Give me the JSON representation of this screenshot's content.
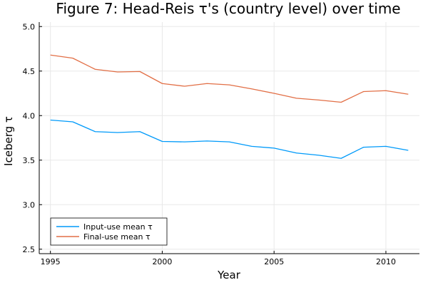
{
  "chart_data": {
    "type": "line",
    "title": "Figure 7: Head-Reis τ's (country level) over time",
    "xlabel": "Year",
    "ylabel": "Iceberg τ",
    "xlim": [
      1994.5,
      2011.5
    ],
    "ylim": [
      2.45,
      5.05
    ],
    "xticks": [
      1995,
      2000,
      2005,
      2010
    ],
    "yticks": [
      "2.5",
      "3.0",
      "3.5",
      "4.0",
      "4.5",
      "5.0"
    ],
    "grid": true,
    "legend_position": "bottom-left",
    "x": [
      1995,
      1996,
      1997,
      1998,
      1999,
      2000,
      2001,
      2002,
      2003,
      2004,
      2005,
      2006,
      2007,
      2008,
      2009,
      2010,
      2011
    ],
    "series": [
      {
        "name": "Input-use mean τ",
        "color": "#009AFA",
        "values": [
          3.95,
          3.93,
          3.82,
          3.81,
          3.82,
          3.71,
          3.705,
          3.715,
          3.705,
          3.655,
          3.635,
          3.58,
          3.555,
          3.52,
          3.645,
          3.655,
          3.61
        ]
      },
      {
        "name": "Final-use mean τ",
        "color": "#E26F46",
        "values": [
          4.68,
          4.645,
          4.52,
          4.49,
          4.495,
          4.36,
          4.33,
          4.36,
          4.345,
          4.3,
          4.25,
          4.195,
          4.175,
          4.15,
          4.27,
          4.28,
          4.24
        ]
      }
    ]
  }
}
